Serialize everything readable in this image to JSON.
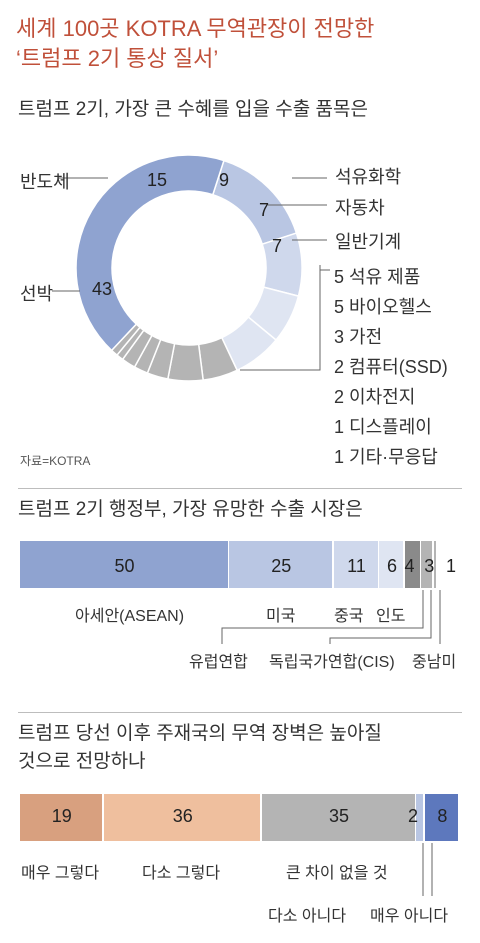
{
  "title_line1": "세계 100곳 KOTRA 무역관장이 전망한",
  "title_line2": "‘트럼프 2기 통상 질서’",
  "source": "자료=KOTRA",
  "colors": {
    "blue": "#8fa3d0",
    "lightblue": "#b9c6e3",
    "lighterblue": "#cfd8ec",
    "palest": "#dfe5f2",
    "gray": "#b4b4b4",
    "darkgray": "#8a8a8a",
    "brown": "#d8a07f",
    "peach": "#efbf9e",
    "deepblue": "#5d78bd"
  },
  "chart_data": [
    {
      "type": "pie",
      "title": "트럼프 2기, 가장 큰 수혜를 입을 수출 품목은",
      "categories": [
        "반도체",
        "석유화학",
        "자동차",
        "일반기계",
        "석유 제품",
        "바이오헬스",
        "가전",
        "컴퓨터(SSD)",
        "이차전지",
        "디스플레이",
        "기타·무응답",
        "선박"
      ],
      "values": [
        15,
        9,
        7,
        7,
        5,
        5,
        3,
        2,
        2,
        1,
        1,
        43
      ]
    },
    {
      "type": "bar",
      "stacked": true,
      "title": "트럼프 2기 행정부, 가장 유망한 수출 시장은",
      "categories": [
        "아세안(ASEAN)",
        "미국",
        "중국",
        "인도",
        "유럽연합",
        "독립국가연합(CIS)",
        "중남미"
      ],
      "values": [
        50,
        25,
        11,
        6,
        4,
        3,
        1
      ]
    },
    {
      "type": "bar",
      "stacked": true,
      "title_line1": "트럼프 당선 이후 주재국의 무역 장벽은 높아질",
      "title_line2": "것으로 전망하나",
      "categories": [
        "매우 그렇다",
        "다소 그렇다",
        "큰 차이 없을 것",
        "다소 아니다",
        "매우 아니다"
      ],
      "values": [
        19,
        36,
        35,
        2,
        8
      ]
    }
  ]
}
